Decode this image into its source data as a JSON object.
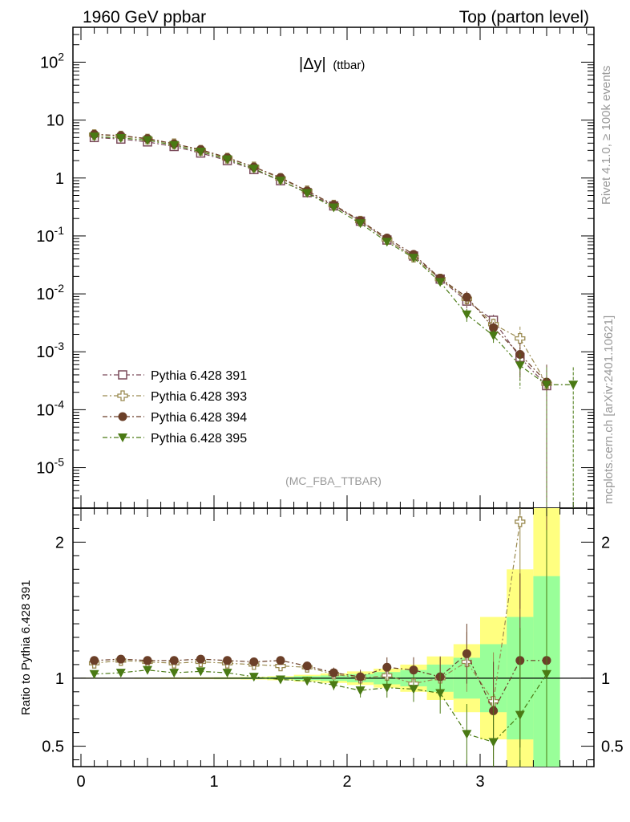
{
  "header": {
    "left": "1960 GeV ppbar",
    "right": "Top (parton level)"
  },
  "side": {
    "rivet": "Rivet 4.1.0, ≥ 100k events",
    "source": "mcplots.cern.ch [arXiv:2401.10621]"
  },
  "plot": {
    "title_main": "|Δy|",
    "title_sub": "(ttbar)",
    "analysis": "(MC_FBA_TTBAR)",
    "ratio_ylabel": "Ratio to Pythia 6.428 391"
  },
  "colors": {
    "s391": "#7a4a5a",
    "s393": "#9a8a50",
    "s394": "#6b3f28",
    "s395": "#4a7a14",
    "band_yellow": "#ffff80",
    "band_green": "#99ff99"
  },
  "chart_data": {
    "type": "scatter",
    "x": [
      0.1,
      0.3,
      0.5,
      0.7,
      0.9,
      1.1,
      1.3,
      1.5,
      1.7,
      1.9,
      2.1,
      2.3,
      2.5,
      2.7,
      2.9,
      3.1,
      3.3,
      3.5,
      3.7
    ],
    "xlim": [
      -0.05,
      3.9
    ],
    "ylim": [
      2e-06,
      400
    ],
    "yscale": "log",
    "y_ticks": [
      "10^-5",
      "10^-4",
      "10^-3",
      "10^-2",
      "10^-1",
      "1",
      "10",
      "10^2"
    ],
    "x_ticks": [
      "0",
      "1",
      "2",
      "3"
    ],
    "series": [
      {
        "name": "Pythia 6.428 391",
        "marker": "open-square",
        "values": [
          5.0,
          4.7,
          4.2,
          3.5,
          2.7,
          2.0,
          1.4,
          0.9,
          0.56,
          0.33,
          0.18,
          0.085,
          0.045,
          0.018,
          0.0075,
          0.0035,
          0.0008,
          0.00026,
          null
        ]
      },
      {
        "name": "Pythia 6.428 393",
        "marker": "open-cross",
        "values": [
          5.6,
          5.3,
          4.7,
          3.9,
          3.0,
          2.2,
          1.55,
          0.98,
          0.6,
          0.34,
          0.18,
          0.087,
          0.043,
          0.018,
          0.0082,
          0.003,
          0.0017,
          0.00028,
          null
        ]
      },
      {
        "name": "Pythia 6.428 394",
        "marker": "filled-circle",
        "values": [
          5.7,
          5.4,
          4.8,
          3.9,
          3.1,
          2.25,
          1.55,
          1.02,
          0.6,
          0.345,
          0.183,
          0.092,
          0.048,
          0.0185,
          0.0088,
          0.0026,
          0.0009,
          0.0003,
          null
        ]
      },
      {
        "name": "Pythia 6.428 395",
        "marker": "filled-triangle-down",
        "values": [
          5.2,
          4.9,
          4.5,
          3.7,
          2.85,
          2.1,
          1.45,
          0.9,
          0.55,
          0.31,
          0.165,
          0.079,
          0.042,
          0.016,
          0.0044,
          0.0019,
          0.00058,
          0.00027,
          0.00027
        ]
      }
    ],
    "ratio": {
      "ylabel": "Ratio to Pythia 6.428 391",
      "ylim": [
        0.35,
        2.25
      ],
      "y_ticks": [
        "0.5",
        "1",
        "2"
      ],
      "reference": "Pythia 6.428 391",
      "band_yellow_half_width": [
        0.004,
        0.004,
        0.005,
        0.006,
        0.007,
        0.008,
        0.01,
        0.015,
        0.025,
        0.035,
        0.05,
        0.07,
        0.1,
        0.16,
        0.25,
        0.45,
        0.8,
        1.3,
        null
      ],
      "band_green_half_width": [
        0.002,
        0.002,
        0.003,
        0.003,
        0.004,
        0.005,
        0.006,
        0.008,
        0.015,
        0.02,
        0.03,
        0.045,
        0.06,
        0.1,
        0.15,
        0.25,
        0.45,
        0.75,
        null
      ],
      "series": [
        {
          "name": "Pythia 6.428 393",
          "values": [
            1.11,
            1.13,
            1.12,
            1.11,
            1.12,
            1.11,
            1.1,
            1.09,
            1.08,
            1.03,
            1.0,
            1.02,
            0.96,
            1.0,
            1.12,
            0.83,
            2.15,
            null,
            null
          ]
        },
        {
          "name": "Pythia 6.428 394",
          "values": [
            1.13,
            1.14,
            1.13,
            1.13,
            1.14,
            1.13,
            1.12,
            1.13,
            1.09,
            1.04,
            1.01,
            1.08,
            1.06,
            1.01,
            1.18,
            0.76,
            1.13,
            1.13,
            null
          ]
        },
        {
          "name": "Pythia 6.428 395",
          "values": [
            1.03,
            1.04,
            1.06,
            1.04,
            1.05,
            1.04,
            1.01,
            0.99,
            0.98,
            0.95,
            0.91,
            0.93,
            0.92,
            0.89,
            0.59,
            0.53,
            0.73,
            1.03,
            null
          ]
        }
      ]
    }
  }
}
